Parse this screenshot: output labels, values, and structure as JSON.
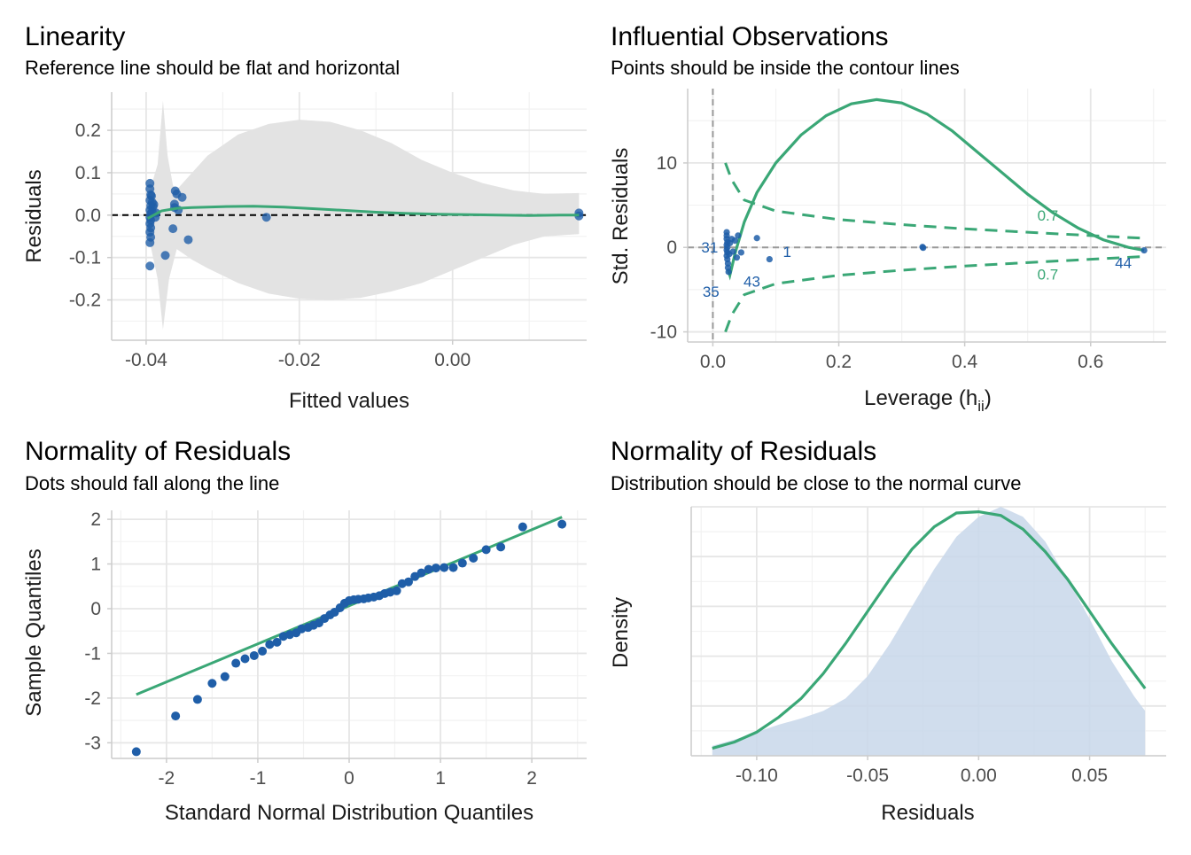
{
  "colors": {
    "point": "#1f5ea8",
    "line": "#3aa776",
    "band": "#e3e3e3",
    "density_fill": "#c8d7ea",
    "grid_major": "#e6e6e6",
    "grid_minor": "#f2f2f2",
    "axis": "#cccccc",
    "ref": "#000000",
    "dashed_grey": "#999999"
  },
  "chart_data": [
    {
      "type": "scatter",
      "title": "Linearity",
      "subtitle": "Reference line should be flat and horizontal",
      "xlabel": "Fitted values",
      "ylabel": "Residuals",
      "xlim": [
        -0.0445,
        0.0175
      ],
      "ylim": [
        -0.295,
        0.29
      ],
      "xticks": [
        -0.04,
        -0.02,
        0.0
      ],
      "xtick_labels": [
        "-0.04",
        "-0.02",
        "0.00"
      ],
      "yticks": [
        -0.2,
        -0.1,
        0.0,
        0.1,
        0.2
      ],
      "ytick_labels": [
        "-0.2",
        "-0.1",
        "0.0",
        "0.1",
        "0.2"
      ],
      "grid": true,
      "reference_line": 0,
      "points": [
        [
          -0.0395,
          0.075
        ],
        [
          -0.0395,
          0.062
        ],
        [
          -0.0394,
          0.048
        ],
        [
          -0.0395,
          0.035
        ],
        [
          -0.0394,
          0.022
        ],
        [
          -0.0395,
          0.012
        ],
        [
          -0.0394,
          0.003
        ],
        [
          -0.0395,
          -0.005
        ],
        [
          -0.0394,
          -0.012
        ],
        [
          -0.0395,
          -0.02
        ],
        [
          -0.0394,
          -0.03
        ],
        [
          -0.0395,
          -0.04
        ],
        [
          -0.0394,
          -0.052
        ],
        [
          -0.0395,
          -0.065
        ],
        [
          -0.0395,
          -0.12
        ],
        [
          -0.0392,
          0.03
        ],
        [
          -0.0392,
          0.008
        ],
        [
          -0.0393,
          0.045
        ],
        [
          -0.0391,
          0.02
        ],
        [
          -0.039,
          0.025
        ],
        [
          -0.0388,
          -0.005
        ],
        [
          -0.0387,
          0.005
        ],
        [
          -0.0375,
          -0.095
        ],
        [
          -0.0365,
          -0.032
        ],
        [
          -0.0363,
          0.026
        ],
        [
          -0.0363,
          0.018
        ],
        [
          -0.0362,
          0.057
        ],
        [
          -0.036,
          0.05
        ],
        [
          -0.0358,
          0.012
        ],
        [
          -0.0353,
          0.042
        ],
        [
          -0.0345,
          -0.058
        ],
        [
          -0.0243,
          -0.005
        ],
        [
          0.0165,
          0.005
        ],
        [
          0.0165,
          -0.002
        ]
      ],
      "smooth": [
        [
          -0.0398,
          -0.008
        ],
        [
          -0.038,
          0.01
        ],
        [
          -0.036,
          0.016
        ],
        [
          -0.034,
          0.018
        ],
        [
          -0.03,
          0.02
        ],
        [
          -0.026,
          0.021
        ],
        [
          -0.022,
          0.019
        ],
        [
          -0.018,
          0.015
        ],
        [
          -0.014,
          0.011
        ],
        [
          -0.01,
          0.007
        ],
        [
          -0.006,
          0.004
        ],
        [
          -0.002,
          0.002
        ],
        [
          0.002,
          0.001
        ],
        [
          0.006,
          0.0
        ],
        [
          0.01,
          -0.001
        ],
        [
          0.014,
          0.0
        ],
        [
          0.0165,
          0.0
        ]
      ],
      "band_upper": [
        [
          -0.0398,
          0.04
        ],
        [
          -0.0385,
          0.12
        ],
        [
          -0.0378,
          0.27
        ],
        [
          -0.0372,
          0.14
        ],
        [
          -0.0365,
          0.07
        ],
        [
          -0.036,
          0.06
        ],
        [
          -0.034,
          0.1
        ],
        [
          -0.032,
          0.14
        ],
        [
          -0.028,
          0.19
        ],
        [
          -0.024,
          0.215
        ],
        [
          -0.02,
          0.225
        ],
        [
          -0.016,
          0.22
        ],
        [
          -0.012,
          0.2
        ],
        [
          -0.008,
          0.17
        ],
        [
          -0.004,
          0.13
        ],
        [
          0.0,
          0.1
        ],
        [
          0.004,
          0.075
        ],
        [
          0.008,
          0.058
        ],
        [
          0.012,
          0.05
        ],
        [
          0.0165,
          0.052
        ]
      ],
      "band_lower": [
        [
          0.0165,
          -0.045
        ],
        [
          0.012,
          -0.05
        ],
        [
          0.008,
          -0.07
        ],
        [
          0.004,
          -0.1
        ],
        [
          0.0,
          -0.13
        ],
        [
          -0.004,
          -0.16
        ],
        [
          -0.008,
          -0.18
        ],
        [
          -0.012,
          -0.195
        ],
        [
          -0.016,
          -0.2
        ],
        [
          -0.02,
          -0.197
        ],
        [
          -0.024,
          -0.185
        ],
        [
          -0.028,
          -0.16
        ],
        [
          -0.032,
          -0.125
        ],
        [
          -0.034,
          -0.105
        ],
        [
          -0.036,
          -0.08
        ],
        [
          -0.037,
          -0.15
        ],
        [
          -0.0378,
          -0.27
        ],
        [
          -0.0385,
          -0.15
        ],
        [
          -0.0398,
          -0.04
        ]
      ]
    },
    {
      "type": "scatter",
      "title": "Influential Observations",
      "subtitle": "Points should be inside the contour lines",
      "xlabel": "Leverage (h",
      "xlabel_sub": "ii",
      "xlabel_close": ")",
      "ylabel": "Std. Residuals",
      "xlim": [
        -0.04,
        0.72
      ],
      "ylim": [
        -11.2,
        18.8
      ],
      "xticks": [
        0.0,
        0.2,
        0.4,
        0.6
      ],
      "xtick_labels": [
        "0.0",
        "0.2",
        "0.4",
        "0.6"
      ],
      "yticks": [
        -10,
        0,
        10
      ],
      "ytick_labels": [
        "-10",
        "0",
        "10"
      ],
      "grid": true,
      "points": [
        [
          0.022,
          1.8
        ],
        [
          0.022,
          1.4
        ],
        [
          0.022,
          1.0
        ],
        [
          0.023,
          0.6
        ],
        [
          0.022,
          0.3
        ],
        [
          0.023,
          0.0
        ],
        [
          0.022,
          -0.3
        ],
        [
          0.023,
          -0.6
        ],
        [
          0.022,
          -1.0
        ],
        [
          0.023,
          -1.4
        ],
        [
          0.024,
          -1.9
        ],
        [
          0.024,
          -2.4
        ],
        [
          0.025,
          -2.9
        ],
        [
          0.026,
          -0.8
        ],
        [
          0.027,
          0.5
        ],
        [
          0.03,
          1.0
        ],
        [
          0.032,
          -0.5
        ],
        [
          0.035,
          0.8
        ],
        [
          0.038,
          -1.2
        ],
        [
          0.04,
          1.4
        ],
        [
          0.045,
          -0.6
        ],
        [
          0.07,
          1.1
        ],
        [
          0.09,
          -1.4
        ],
        [
          0.333,
          0.05
        ],
        [
          0.334,
          -0.05
        ],
        [
          0.685,
          -0.35
        ]
      ],
      "labels": [
        {
          "text": "31",
          "x": -0.005,
          "y": 0.0
        },
        {
          "text": "1",
          "x": 0.118,
          "y": -0.5
        },
        {
          "text": "35",
          "x": -0.003,
          "y": -5.2
        },
        {
          "text": "43",
          "x": 0.062,
          "y": -4.0
        },
        {
          "text": "44",
          "x": 0.652,
          "y": -1.8
        }
      ],
      "contour_label": "0.7",
      "contour_label_positions": [
        {
          "x": 0.532,
          "y": 3.8
        },
        {
          "x": 0.532,
          "y": -3.2
        }
      ],
      "smooth": [
        [
          0.024,
          -2.6
        ],
        [
          0.027,
          -3.3
        ],
        [
          0.03,
          -2.4
        ],
        [
          0.036,
          -0.5
        ],
        [
          0.05,
          3.0
        ],
        [
          0.07,
          6.5
        ],
        [
          0.1,
          10.0
        ],
        [
          0.14,
          13.3
        ],
        [
          0.18,
          15.6
        ],
        [
          0.22,
          17.0
        ],
        [
          0.26,
          17.5
        ],
        [
          0.3,
          17.1
        ],
        [
          0.34,
          15.8
        ],
        [
          0.38,
          13.8
        ],
        [
          0.42,
          11.3
        ],
        [
          0.46,
          8.8
        ],
        [
          0.5,
          6.3
        ],
        [
          0.54,
          4.1
        ],
        [
          0.58,
          2.3
        ],
        [
          0.62,
          0.9
        ],
        [
          0.66,
          0.0
        ],
        [
          0.685,
          -0.35
        ]
      ],
      "contour_upper": [
        [
          0.02,
          10.0
        ],
        [
          0.03,
          8.0
        ],
        [
          0.05,
          5.6
        ],
        [
          0.1,
          4.3
        ],
        [
          0.2,
          3.3
        ],
        [
          0.3,
          2.7
        ],
        [
          0.4,
          2.2
        ],
        [
          0.5,
          1.8
        ],
        [
          0.6,
          1.4
        ],
        [
          0.68,
          1.1
        ]
      ],
      "contour_lower": [
        [
          0.02,
          -10.0
        ],
        [
          0.03,
          -8.0
        ],
        [
          0.05,
          -5.6
        ],
        [
          0.1,
          -4.3
        ],
        [
          0.2,
          -3.3
        ],
        [
          0.3,
          -2.7
        ],
        [
          0.4,
          -2.2
        ],
        [
          0.5,
          -1.8
        ],
        [
          0.6,
          -1.4
        ],
        [
          0.68,
          -1.1
        ]
      ]
    },
    {
      "type": "scatter",
      "title": "Normality of Residuals",
      "subtitle": "Dots should fall along the line",
      "xlabel": "Standard Normal Distribution Quantiles",
      "ylabel": "Sample Quantiles",
      "xlim": [
        -2.6,
        2.6
      ],
      "ylim": [
        -3.35,
        2.2
      ],
      "xticks": [
        -2,
        -1,
        0,
        1,
        2
      ],
      "xtick_labels": [
        "-2",
        "-1",
        "0",
        "1",
        "2"
      ],
      "yticks": [
        -3,
        -2,
        -1,
        0,
        1,
        2
      ],
      "ytick_labels": [
        "-3",
        "-2",
        "-1",
        "0",
        "1",
        "2"
      ],
      "grid": true,
      "line": [
        [
          -2.33,
          -1.92
        ],
        [
          2.33,
          2.05
        ]
      ],
      "points": [
        [
          -2.33,
          -3.2
        ],
        [
          -1.9,
          -2.4
        ],
        [
          -1.66,
          -2.03
        ],
        [
          -1.5,
          -1.67
        ],
        [
          -1.36,
          -1.52
        ],
        [
          -1.24,
          -1.22
        ],
        [
          -1.14,
          -1.12
        ],
        [
          -1.04,
          -1.05
        ],
        [
          -0.95,
          -0.95
        ],
        [
          -0.87,
          -0.8
        ],
        [
          -0.79,
          -0.75
        ],
        [
          -0.72,
          -0.62
        ],
        [
          -0.65,
          -0.58
        ],
        [
          -0.58,
          -0.54
        ],
        [
          -0.52,
          -0.45
        ],
        [
          -0.45,
          -0.42
        ],
        [
          -0.39,
          -0.37
        ],
        [
          -0.33,
          -0.32
        ],
        [
          -0.27,
          -0.22
        ],
        [
          -0.21,
          -0.14
        ],
        [
          -0.16,
          -0.08
        ],
        [
          -0.1,
          0.02
        ],
        [
          -0.05,
          0.12
        ],
        [
          0.0,
          0.18
        ],
        [
          0.05,
          0.2
        ],
        [
          0.1,
          0.21
        ],
        [
          0.16,
          0.22
        ],
        [
          0.21,
          0.24
        ],
        [
          0.27,
          0.26
        ],
        [
          0.33,
          0.29
        ],
        [
          0.39,
          0.34
        ],
        [
          0.45,
          0.37
        ],
        [
          0.52,
          0.4
        ],
        [
          0.58,
          0.56
        ],
        [
          0.65,
          0.6
        ],
        [
          0.72,
          0.72
        ],
        [
          0.79,
          0.8
        ],
        [
          0.87,
          0.88
        ],
        [
          0.95,
          0.91
        ],
        [
          1.04,
          0.92
        ],
        [
          1.14,
          0.92
        ],
        [
          1.24,
          1.02
        ],
        [
          1.36,
          1.13
        ],
        [
          1.5,
          1.32
        ],
        [
          1.66,
          1.38
        ],
        [
          1.9,
          1.83
        ],
        [
          2.33,
          1.89
        ]
      ]
    },
    {
      "type": "area",
      "title": "Normality of Residuals",
      "subtitle": "Distribution should be close to the normal curve",
      "xlabel": "Residuals",
      "ylabel": "Density",
      "xlim": [
        -0.1295,
        0.0845
      ],
      "ylim": [
        0.0,
        1.0
      ],
      "xticks": [
        -0.1,
        -0.05,
        0.0,
        0.05
      ],
      "xtick_labels": [
        "-0.10",
        "-0.05",
        "0.00",
        "0.05"
      ],
      "grid": true,
      "density": [
        [
          -0.12,
          0.04
        ],
        [
          -0.11,
          0.065
        ],
        [
          -0.1,
          0.095
        ],
        [
          -0.09,
          0.125
        ],
        [
          -0.08,
          0.15
        ],
        [
          -0.07,
          0.18
        ],
        [
          -0.06,
          0.23
        ],
        [
          -0.05,
          0.32
        ],
        [
          -0.04,
          0.45
        ],
        [
          -0.03,
          0.6
        ],
        [
          -0.02,
          0.75
        ],
        [
          -0.01,
          0.88
        ],
        [
          0.0,
          0.96
        ],
        [
          0.01,
          1.0
        ],
        [
          0.02,
          0.96
        ],
        [
          0.03,
          0.86
        ],
        [
          0.04,
          0.71
        ],
        [
          0.05,
          0.55
        ],
        [
          0.06,
          0.38
        ],
        [
          0.07,
          0.24
        ],
        [
          0.075,
          0.18
        ]
      ],
      "normal_curve": [
        [
          -0.12,
          0.03
        ],
        [
          -0.11,
          0.055
        ],
        [
          -0.1,
          0.095
        ],
        [
          -0.09,
          0.155
        ],
        [
          -0.08,
          0.23
        ],
        [
          -0.07,
          0.33
        ],
        [
          -0.06,
          0.45
        ],
        [
          -0.05,
          0.58
        ],
        [
          -0.04,
          0.71
        ],
        [
          -0.03,
          0.83
        ],
        [
          -0.02,
          0.92
        ],
        [
          -0.01,
          0.975
        ],
        [
          0.0,
          0.98
        ],
        [
          0.01,
          0.965
        ],
        [
          0.02,
          0.91
        ],
        [
          0.03,
          0.82
        ],
        [
          0.04,
          0.71
        ],
        [
          0.05,
          0.58
        ],
        [
          0.06,
          0.45
        ],
        [
          0.07,
          0.33
        ],
        [
          0.075,
          0.27
        ]
      ]
    }
  ]
}
